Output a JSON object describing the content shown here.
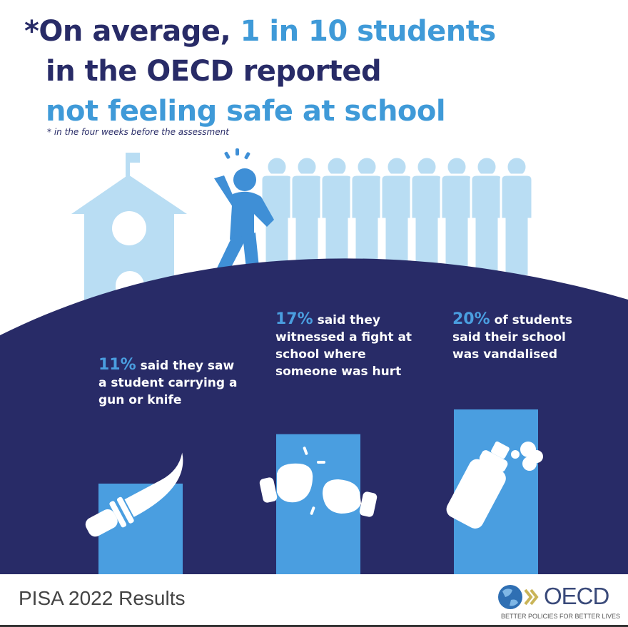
{
  "headline": {
    "line1_prefix": "*On average, ",
    "line1_highlight": "1 in 10 students",
    "line2": "in the OECD reported",
    "line3": "not feeling safe at school"
  },
  "footnote": "* in the four weeks before the assessment",
  "stats": [
    {
      "percent": "11%",
      "text": " said they saw a student carrying a gun or knife",
      "icon": "knife-icon",
      "value": 11
    },
    {
      "percent": "17%",
      "text": " said they witnessed a fight at school where someone was hurt",
      "icon": "fists-icon",
      "value": 17
    },
    {
      "percent": "20%",
      "text": " of students said their school was vandalised",
      "icon": "spray-can-icon",
      "value": 20
    }
  ],
  "footer": {
    "publication": "PISA 2022 Results",
    "logo_text": "OECD",
    "logo_tagline": "BETTER POLICIES FOR BETTER LIVES"
  },
  "colors": {
    "navy": "#282b67",
    "accent_blue": "#3f9ad8",
    "bar_blue": "#4a9ee0",
    "figure_light": "#b9ddf3",
    "unsafe_figure": "#3f8fd6"
  }
}
